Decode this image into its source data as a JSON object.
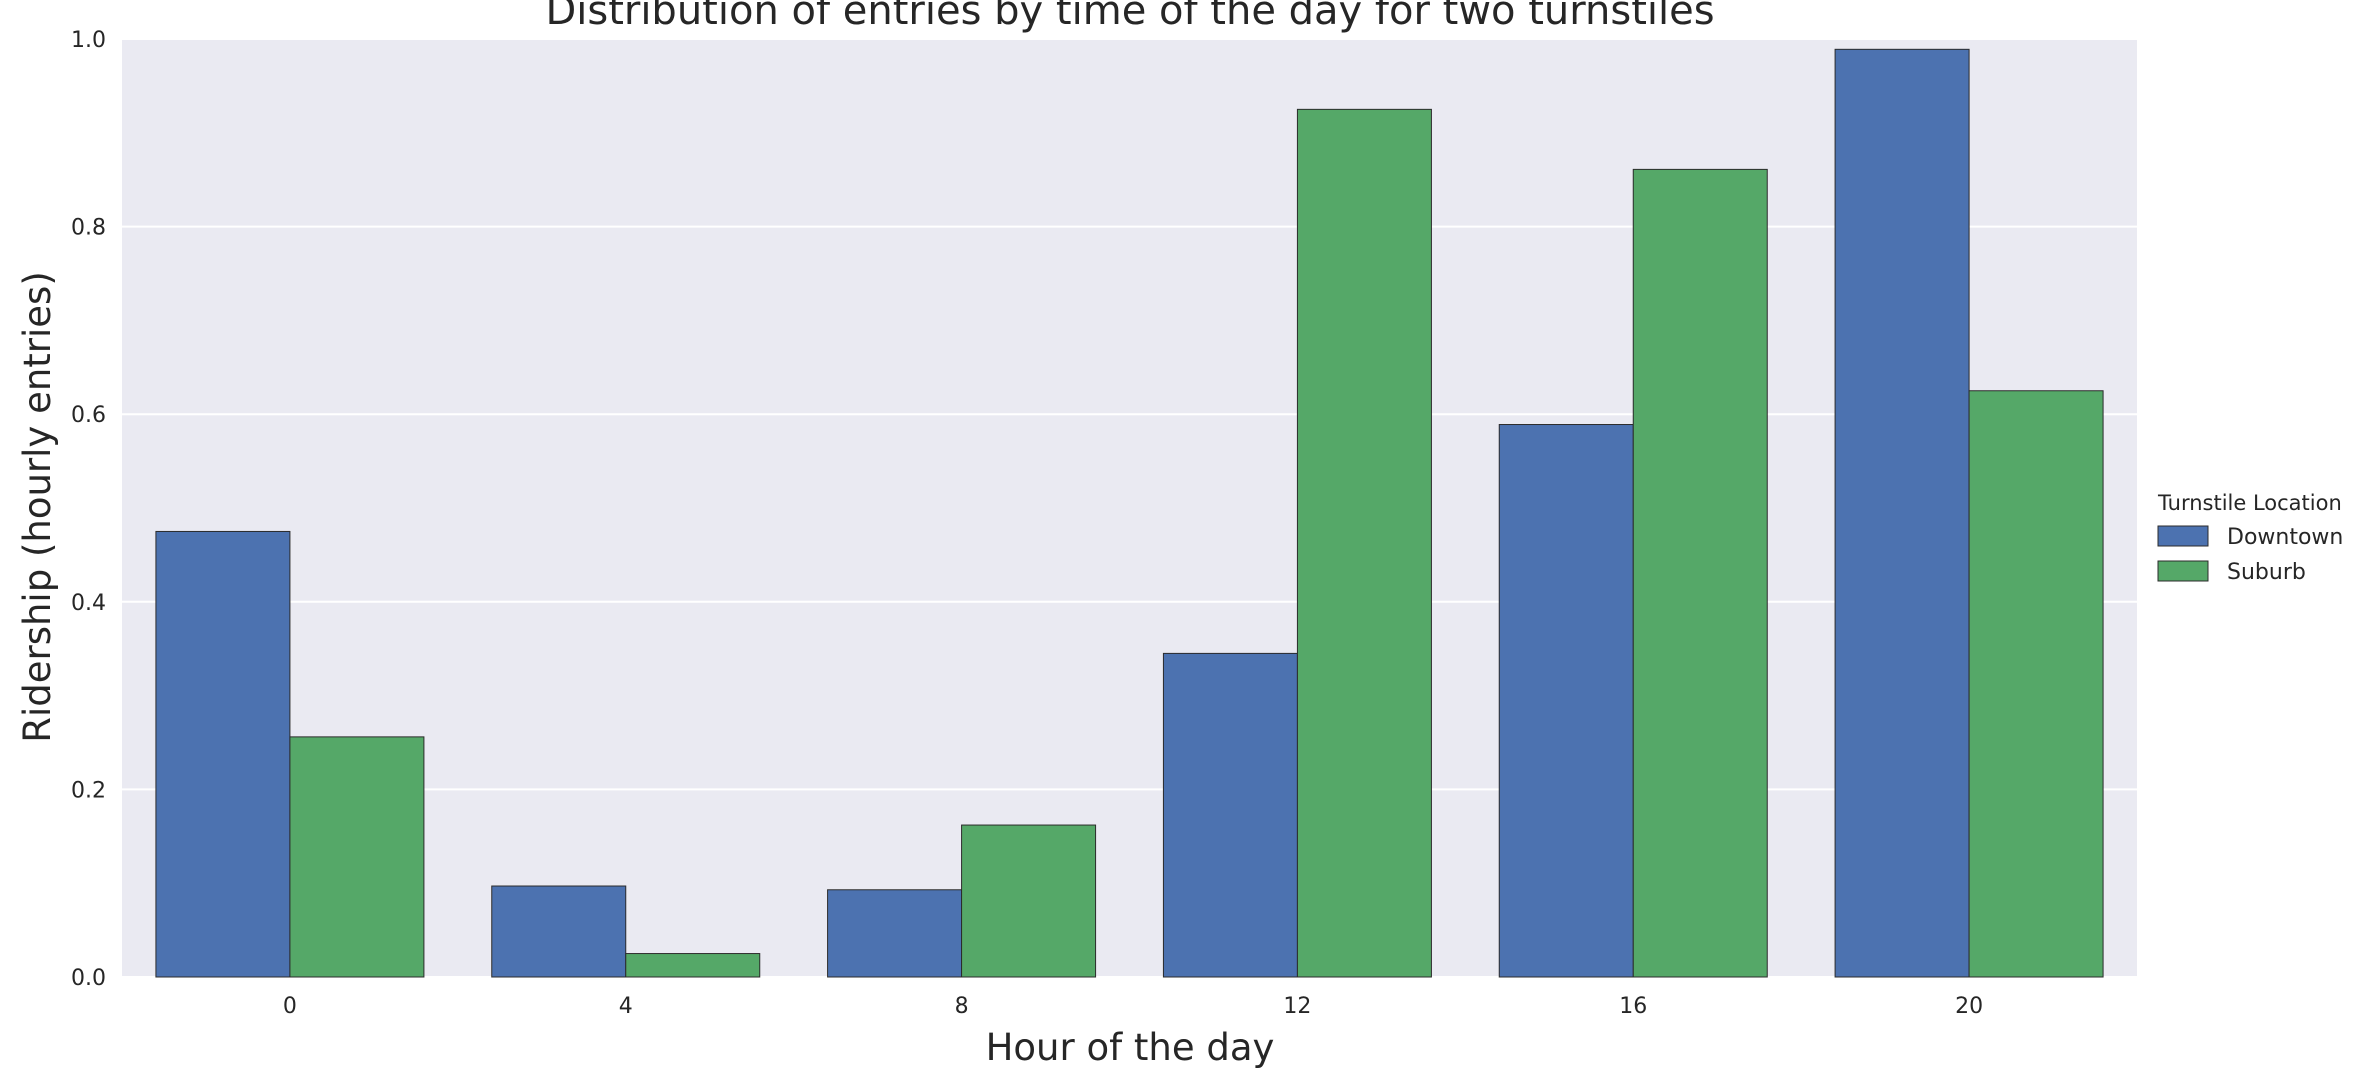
{
  "colors": {
    "plot_background": "#EAEAF2",
    "grid": "#FFFFFF",
    "downtown": "#4C72B0",
    "suburb": "#55A868",
    "text": "#262626"
  },
  "chart_data": {
    "type": "bar",
    "title": "Distribution of entries by time of the day for two turnstiles",
    "xlabel": "Hour of the day",
    "ylabel": "Ridership (hourly entries)",
    "categories": [
      "0",
      "4",
      "8",
      "12",
      "16",
      "20"
    ],
    "series": [
      {
        "name": "Downtown",
        "values": [
          0.475,
          0.097,
          0.093,
          0.345,
          0.589,
          0.989
        ]
      },
      {
        "name": "Suburb",
        "values": [
          0.256,
          0.025,
          0.162,
          0.925,
          0.861,
          0.625
        ]
      }
    ],
    "ylim": [
      0.0,
      1.0
    ],
    "yticks": [
      "0.0",
      "0.2",
      "0.4",
      "0.6",
      "0.8",
      "1.0"
    ],
    "grid": true,
    "legend": {
      "title": "Turnstile Location",
      "position": "right"
    }
  }
}
